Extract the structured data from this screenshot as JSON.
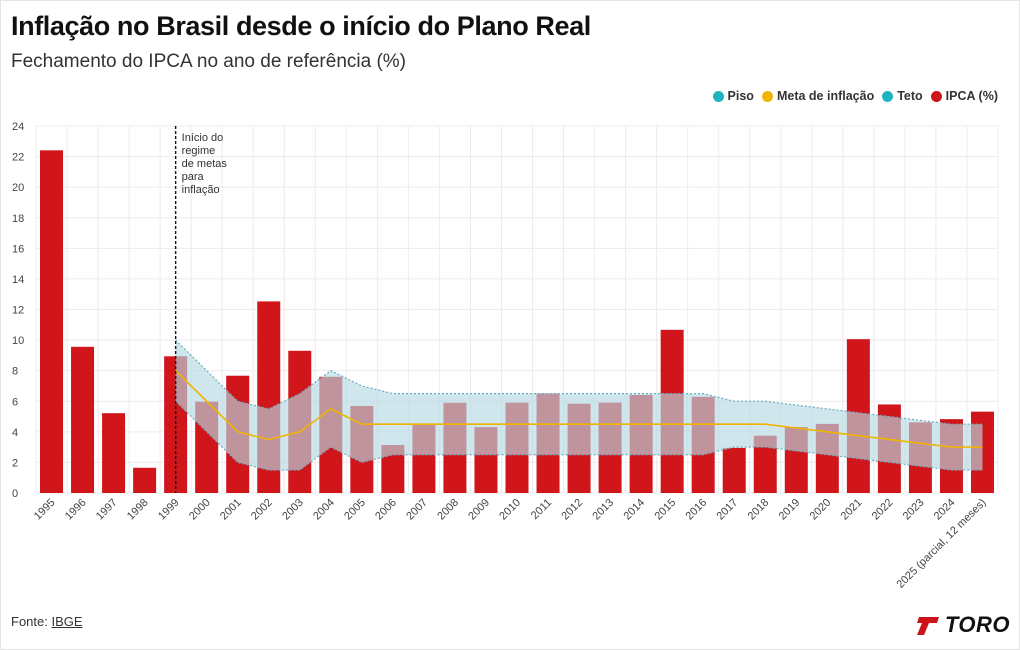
{
  "title": "Inflação no Brasil desde o início do Plano Real",
  "subtitle": "Fechamento do IPCA no ano de referência (%)",
  "legend": [
    {
      "label": "Piso",
      "color": "#1fb3c1"
    },
    {
      "label": "Meta de inflação",
      "color": "#f0b400"
    },
    {
      "label": "Teto",
      "color": "#1fb3c1"
    },
    {
      "label": "IPCA (%)",
      "color": "#cc1418"
    }
  ],
  "source": {
    "prefix": "Fonte: ",
    "link": "IBGE"
  },
  "logo": {
    "text": "TORO",
    "color": "#cc1418"
  },
  "colors": {
    "bar": "#d0161b",
    "band": "#b7d8e4",
    "band_edge": "#6aaec2",
    "target": "#f0b400",
    "grid": "#ececec",
    "annotation_line": "#111111"
  },
  "chart_data": {
    "type": "bar",
    "categories": [
      "1995",
      "1996",
      "1997",
      "1998",
      "1999",
      "2000",
      "2001",
      "2002",
      "2003",
      "2004",
      "2005",
      "2006",
      "2007",
      "2008",
      "2009",
      "2010",
      "2011",
      "2012",
      "2013",
      "2014",
      "2015",
      "2016",
      "2017",
      "2018",
      "2019",
      "2020",
      "2021",
      "2022",
      "2023",
      "2024",
      "2025 (parcial, 12 meses)"
    ],
    "series": [
      {
        "name": "IPCA (%)",
        "type": "bar",
        "values": [
          22.41,
          9.56,
          5.22,
          1.65,
          8.94,
          5.97,
          7.67,
          12.53,
          9.3,
          7.6,
          5.69,
          3.14,
          4.46,
          5.9,
          4.31,
          5.91,
          6.5,
          5.84,
          5.91,
          6.41,
          10.67,
          6.29,
          2.95,
          3.75,
          4.31,
          4.52,
          10.06,
          5.79,
          4.62,
          4.83,
          5.32
        ]
      },
      {
        "name": "Piso",
        "type": "line",
        "values": [
          null,
          null,
          null,
          null,
          6.0,
          4.0,
          2.0,
          1.5,
          1.5,
          3.0,
          2.0,
          2.5,
          2.5,
          2.5,
          2.5,
          2.5,
          2.5,
          2.5,
          2.5,
          2.5,
          2.5,
          2.5,
          3.0,
          3.0,
          2.75,
          2.5,
          2.25,
          2.0,
          1.75,
          1.5,
          1.5
        ]
      },
      {
        "name": "Meta de inflação",
        "type": "line",
        "values": [
          null,
          null,
          null,
          null,
          8.0,
          6.0,
          4.0,
          3.5,
          4.0,
          5.5,
          4.5,
          4.5,
          4.5,
          4.5,
          4.5,
          4.5,
          4.5,
          4.5,
          4.5,
          4.5,
          4.5,
          4.5,
          4.5,
          4.5,
          4.25,
          4.0,
          3.75,
          3.5,
          3.25,
          3.0,
          3.0
        ]
      },
      {
        "name": "Teto",
        "type": "line",
        "values": [
          null,
          null,
          null,
          null,
          10.0,
          8.0,
          6.0,
          5.5,
          6.5,
          8.0,
          7.0,
          6.5,
          6.5,
          6.5,
          6.5,
          6.5,
          6.5,
          6.5,
          6.5,
          6.5,
          6.5,
          6.5,
          6.0,
          6.0,
          5.75,
          5.5,
          5.25,
          5.0,
          4.75,
          4.5,
          4.5
        ]
      }
    ],
    "ylim": [
      0,
      24
    ],
    "yticks": [
      0,
      2,
      4,
      6,
      8,
      10,
      12,
      14,
      16,
      18,
      20,
      22,
      24
    ],
    "grid": true,
    "legend_position": "top-right",
    "annotation": {
      "category": "1999",
      "lines": [
        "Início do",
        "regime",
        "de metas",
        "para",
        "inflação"
      ]
    }
  }
}
